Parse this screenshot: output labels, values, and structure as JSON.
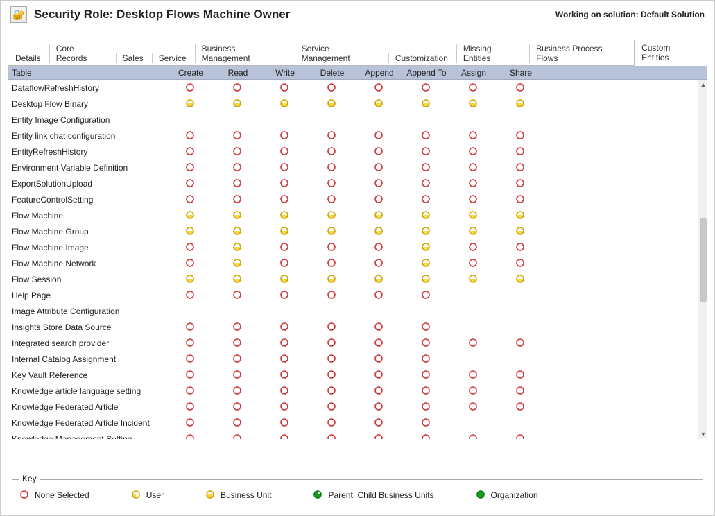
{
  "header": {
    "title": "Security Role: Desktop Flows Machine Owner",
    "working_on": "Working on solution: Default Solution"
  },
  "tabs": [
    {
      "label": "Details",
      "active": false
    },
    {
      "label": "Core Records",
      "active": false
    },
    {
      "label": "Sales",
      "active": false
    },
    {
      "label": "Service",
      "active": false
    },
    {
      "label": "Business Management",
      "active": false
    },
    {
      "label": "Service Management",
      "active": false
    },
    {
      "label": "Customization",
      "active": false
    },
    {
      "label": "Missing Entities",
      "active": false
    },
    {
      "label": "Business Process Flows",
      "active": false
    },
    {
      "label": "Custom Entities",
      "active": true
    }
  ],
  "columns": [
    "Table",
    "Create",
    "Read",
    "Write",
    "Delete",
    "Append",
    "Append To",
    "Assign",
    "Share"
  ],
  "privilege_levels": {
    "none": {
      "label": "None Selected",
      "ring": "#d13438",
      "fill": null,
      "type": "ring"
    },
    "user": {
      "label": "User",
      "ring": "#c7a600",
      "fill": "#ffd54a",
      "type": "quarter"
    },
    "bu": {
      "label": "Business Unit",
      "ring": "#c7a600",
      "fill": "#ffd54a",
      "type": "half"
    },
    "parent": {
      "label": "Parent: Child Business Units",
      "ring": "#0a7d20",
      "fill": "#16a016",
      "type": "pac"
    },
    "org": {
      "label": "Organization",
      "ring": "#0a7d20",
      "fill": "#16a016",
      "type": "full"
    }
  },
  "rows": [
    {
      "name": "DataflowRefreshHistory",
      "p": [
        "none",
        "none",
        "none",
        "none",
        "none",
        "none",
        "none",
        "none"
      ]
    },
    {
      "name": "Desktop Flow Binary",
      "p": [
        "bu",
        "bu",
        "bu",
        "bu",
        "bu",
        "bu",
        "bu",
        "bu"
      ]
    },
    {
      "name": "Entity Image Configuration",
      "p": [
        "",
        "",
        "",
        "",
        "",
        "",
        "",
        ""
      ]
    },
    {
      "name": "Entity link chat configuration",
      "p": [
        "none",
        "none",
        "none",
        "none",
        "none",
        "none",
        "none",
        "none"
      ]
    },
    {
      "name": "EntityRefreshHistory",
      "p": [
        "none",
        "none",
        "none",
        "none",
        "none",
        "none",
        "none",
        "none"
      ]
    },
    {
      "name": "Environment Variable Definition",
      "p": [
        "none",
        "none",
        "none",
        "none",
        "none",
        "none",
        "none",
        "none"
      ]
    },
    {
      "name": "ExportSolutionUpload",
      "p": [
        "none",
        "none",
        "none",
        "none",
        "none",
        "none",
        "none",
        "none"
      ]
    },
    {
      "name": "FeatureControlSetting",
      "p": [
        "none",
        "none",
        "none",
        "none",
        "none",
        "none",
        "none",
        "none"
      ]
    },
    {
      "name": "Flow Machine",
      "p": [
        "bu",
        "bu",
        "bu",
        "bu",
        "bu",
        "bu",
        "bu",
        "bu"
      ]
    },
    {
      "name": "Flow Machine Group",
      "p": [
        "bu",
        "bu",
        "bu",
        "bu",
        "bu",
        "bu",
        "bu",
        "bu"
      ]
    },
    {
      "name": "Flow Machine Image",
      "p": [
        "none",
        "bu",
        "none",
        "none",
        "none",
        "bu",
        "none",
        "none"
      ]
    },
    {
      "name": "Flow Machine Network",
      "p": [
        "none",
        "bu",
        "none",
        "none",
        "none",
        "bu",
        "none",
        "none"
      ]
    },
    {
      "name": "Flow Session",
      "p": [
        "bu",
        "bu",
        "bu",
        "bu",
        "bu",
        "bu",
        "bu",
        "bu"
      ]
    },
    {
      "name": "Help Page",
      "p": [
        "none",
        "none",
        "none",
        "none",
        "none",
        "none",
        "",
        ""
      ]
    },
    {
      "name": "Image Attribute Configuration",
      "p": [
        "",
        "",
        "",
        "",
        "",
        "",
        "",
        ""
      ]
    },
    {
      "name": "Insights Store Data Source",
      "p": [
        "none",
        "none",
        "none",
        "none",
        "none",
        "none",
        "",
        ""
      ]
    },
    {
      "name": "Integrated search provider",
      "p": [
        "none",
        "none",
        "none",
        "none",
        "none",
        "none",
        "none",
        "none"
      ]
    },
    {
      "name": "Internal Catalog Assignment",
      "p": [
        "none",
        "none",
        "none",
        "none",
        "none",
        "none",
        "",
        ""
      ]
    },
    {
      "name": "Key Vault Reference",
      "p": [
        "none",
        "none",
        "none",
        "none",
        "none",
        "none",
        "none",
        "none"
      ]
    },
    {
      "name": "Knowledge article language setting",
      "p": [
        "none",
        "none",
        "none",
        "none",
        "none",
        "none",
        "none",
        "none"
      ]
    },
    {
      "name": "Knowledge Federated Article",
      "p": [
        "none",
        "none",
        "none",
        "none",
        "none",
        "none",
        "none",
        "none"
      ]
    },
    {
      "name": "Knowledge Federated Article Incident",
      "p": [
        "none",
        "none",
        "none",
        "none",
        "none",
        "none",
        "",
        ""
      ]
    },
    {
      "name": "Knowledge Management Setting",
      "p": [
        "none",
        "none",
        "none",
        "none",
        "none",
        "none",
        "none",
        "none"
      ]
    }
  ],
  "legend_order": [
    "none",
    "user",
    "bu",
    "parent",
    "org"
  ],
  "legend_title": "Key"
}
